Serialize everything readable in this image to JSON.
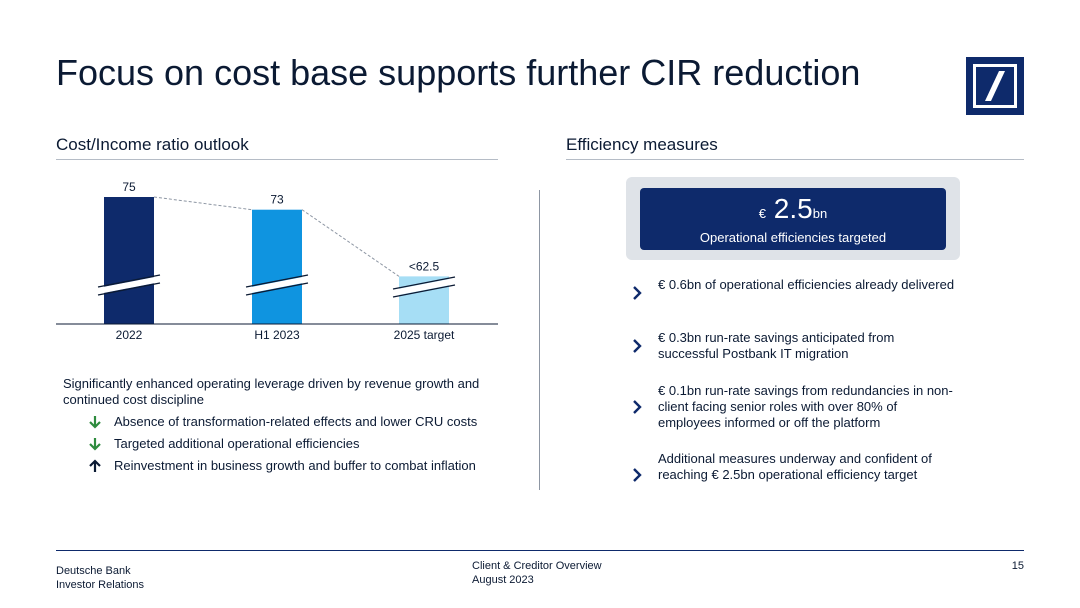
{
  "title": "Focus on cost base supports further CIR reduction",
  "brand_color": "#0e2a6b",
  "left": {
    "heading": "Cost/Income ratio outlook",
    "lead": "Significantly enhanced operating leverage driven by revenue growth and continued cost discipline",
    "bullets": [
      {
        "icon": "arrow-down-icon",
        "color": "#2e8b3e",
        "text": "Absence of transformation-related effects and lower CRU costs"
      },
      {
        "icon": "arrow-down-icon",
        "color": "#2e8b3e",
        "text": "Targeted additional operational efficiencies"
      },
      {
        "icon": "arrow-up-icon",
        "color": "#0b1a33",
        "text": "Reinvestment in business growth and buffer to combat inflation"
      }
    ]
  },
  "chart_data": {
    "type": "bar",
    "categories": [
      "2022",
      "H1 2023",
      "2025 target"
    ],
    "values": [
      75,
      73,
      62.5
    ],
    "labels": [
      "75",
      "73",
      "<62.5"
    ],
    "colors": [
      "#0e2a6b",
      "#0f94e0",
      "#a6def5"
    ],
    "axis_break": true,
    "title": "",
    "xlabel": "",
    "ylabel": ""
  },
  "right": {
    "heading": "Efficiency measures",
    "box": {
      "currency": "€",
      "amount": "2.5",
      "unit": "bn",
      "subtitle": "Operational efficiencies targeted"
    },
    "measures": [
      "€ 0.6bn of operational efficiencies already delivered",
      "€ 0.3bn run-rate savings anticipated from successful Postbank IT migration",
      "€ 0.1bn run-rate savings from redundancies in non-client facing senior roles with over 80% of employees informed or off the platform",
      "Additional measures underway and confident of reaching € 2.5bn operational efficiency target"
    ]
  },
  "footer": {
    "company": "Deutsche Bank",
    "department": "Investor Relations",
    "doc_title": "Client & Creditor Overview",
    "date": "August 2023",
    "page": "15"
  }
}
